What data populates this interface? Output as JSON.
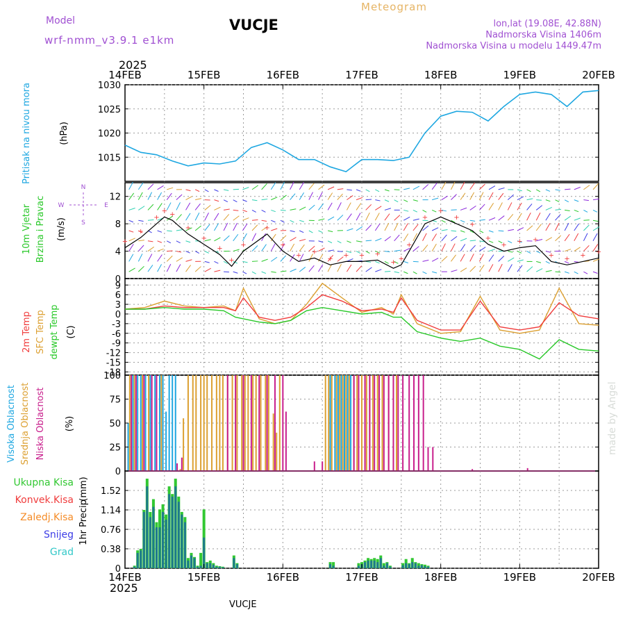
{
  "header": {
    "model_label": "Model",
    "model_name": "wrf-nmm_v3.9.1  e1km",
    "title": "VUCJE",
    "meteogram_label": "Meteogram",
    "lonlat": "lon,lat (19.08E, 42.88N)",
    "altitude": "Nadmorska Visina 1406m",
    "model_altitude": "Nadmorska Visina u modelu 1449.47m",
    "year_top": "2025",
    "year_bottom": "2025",
    "footer_station": "VUCJE",
    "watermark": "made by Angel"
  },
  "colors": {
    "pressure": "#1ea7e1",
    "temp2m": "#f03c3c",
    "sfc_temp": "#dca032",
    "dewpoint": "#28c828",
    "cloud_high": "#1ea7e1",
    "cloud_mid": "#dca032",
    "cloud_low": "#c81e8c",
    "precip_total": "#32c832",
    "precip_conv": "#f03c3c",
    "precip_frz": "#f58c28",
    "precip_snow": "#3c3ce6",
    "precip_graupel": "#32c8c8",
    "header_purple": "#a050d2",
    "meteogram_orange": "#e6b464"
  },
  "chart_data": [
    {
      "type": "line",
      "panel": "pressure",
      "ylabel": "Pritisak na nivou mora",
      "unit": "(hPa)",
      "x_ticks": [
        "14FEB",
        "15FEB",
        "16FEB",
        "17FEB",
        "18FEB",
        "19FEB",
        "20FEB"
      ],
      "ylim": [
        1010,
        1030
      ],
      "yticks": [
        1015,
        1020,
        1025,
        1030
      ],
      "grid": true,
      "x": [
        0,
        0.2,
        0.4,
        0.6,
        0.8,
        1.0,
        1.2,
        1.4,
        1.6,
        1.8,
        2.0,
        2.2,
        2.4,
        2.6,
        2.8,
        3.0,
        3.2,
        3.4,
        3.6,
        3.8,
        4.0,
        4.2,
        4.4,
        4.6,
        4.8,
        5.0,
        5.2,
        5.4,
        5.6,
        5.8,
        6.0
      ],
      "series": [
        {
          "values": [
            1017.5,
            1016,
            1015.5,
            1014.2,
            1013.2,
            1013.8,
            1013.6,
            1014.2,
            1017,
            1018,
            1016.5,
            1014.5,
            1014.5,
            1013,
            1012,
            1014.5,
            1014.5,
            1014.3,
            1015,
            1020,
            1023.5,
            1024.5,
            1024.3,
            1022.5,
            1025.5,
            1028,
            1028.5,
            1028,
            1025.5,
            1028.5,
            1028.8
          ]
        }
      ]
    },
    {
      "type": "line",
      "panel": "wind",
      "ylabel": [
        "10m Vjetar",
        "Brzina i Pravac"
      ],
      "unit": "(m/s)",
      "compass": [
        "N",
        "S",
        "W",
        "E"
      ],
      "ylim": [
        0,
        14
      ],
      "yticks": [
        0,
        4,
        8,
        12
      ],
      "grid": true,
      "x": [
        0,
        0.2,
        0.4,
        0.5,
        0.6,
        0.8,
        1.0,
        1.2,
        1.35,
        1.5,
        1.8,
        2.0,
        2.2,
        2.4,
        2.6,
        2.8,
        3.0,
        3.2,
        3.4,
        3.5,
        3.6,
        3.8,
        4.0,
        4.2,
        4.4,
        4.6,
        4.8,
        5.0,
        5.2,
        5.4,
        5.6,
        5.8,
        6.0
      ],
      "series": [
        {
          "name": "wind speed",
          "values": [
            4.5,
            6,
            8,
            9,
            8.5,
            6.5,
            5,
            3.5,
            1.8,
            4,
            6.5,
            4,
            2.5,
            3,
            2,
            2.5,
            2.5,
            2.7,
            1.5,
            2,
            4,
            8,
            9,
            8,
            7,
            5,
            4,
            4.5,
            4.8,
            2.5,
            2,
            2.5,
            3
          ]
        }
      ]
    },
    {
      "type": "line",
      "panel": "temperature",
      "ylabel": [
        "2m Temp",
        "SFC Temp",
        "dewpt Temp"
      ],
      "unit": "(C)",
      "ylim": [
        -19,
        11
      ],
      "yticks": [
        9,
        6,
        3,
        0,
        -3,
        -6,
        -9,
        -12,
        -15,
        -18
      ],
      "grid": true,
      "x": [
        0,
        0.25,
        0.5,
        0.75,
        1.0,
        1.25,
        1.4,
        1.5,
        1.7,
        1.9,
        2.1,
        2.3,
        2.5,
        2.75,
        3.0,
        3.25,
        3.4,
        3.5,
        3.7,
        4.0,
        4.25,
        4.5,
        4.75,
        5.0,
        5.25,
        5.5,
        5.75,
        6.0
      ],
      "series": [
        {
          "name": "2m Temp",
          "values": [
            1.5,
            1.5,
            2.5,
            2,
            2,
            2,
            1,
            5,
            -1,
            -2,
            -1,
            2,
            6,
            4,
            1,
            1.5,
            0.5,
            5,
            -2,
            -5,
            -5,
            4,
            -4,
            -5,
            -4,
            3.5,
            -0.5,
            -1.5
          ]
        },
        {
          "name": "SFC Temp",
          "values": [
            1.5,
            2,
            4,
            2.5,
            2,
            2.5,
            1,
            8,
            -1.5,
            -3,
            -2,
            3,
            9.5,
            5,
            0.5,
            2,
            0,
            6,
            -3,
            -6,
            -5.5,
            5.5,
            -5,
            -6,
            -5,
            8,
            -3,
            -3.5
          ]
        },
        {
          "name": "dewpt Temp",
          "values": [
            1.5,
            1.5,
            2,
            1.5,
            1.5,
            1,
            -1,
            -1.5,
            -2.5,
            -3,
            -2,
            1,
            2,
            1,
            0,
            0.5,
            -1,
            -1,
            -5.5,
            -7.5,
            -8.5,
            -7.5,
            -10,
            -11,
            -14,
            -8,
            -11,
            -11.5
          ]
        }
      ]
    },
    {
      "type": "bar",
      "panel": "clouds",
      "ylabel": [
        "Visoka Oblacnost",
        "Srednja Oblacnost",
        "Niska Oblacnost"
      ],
      "unit": "(%)",
      "ylim": [
        0,
        100
      ],
      "yticks": [
        0,
        25,
        50,
        75,
        100
      ],
      "grid": true,
      "series": [
        {
          "name": "Visoka Oblacnost",
          "x": [
            0.04,
            0.1,
            0.16,
            0.2,
            0.26,
            0.32,
            0.38,
            0.44,
            0.48,
            0.52,
            0.56,
            0.6,
            0.64,
            1.2,
            2.6,
            2.66,
            2.7,
            2.74,
            2.78,
            2.82,
            2.86
          ],
          "values": [
            50,
            100,
            100,
            100,
            100,
            100,
            100,
            100,
            100,
            62,
            100,
            100,
            100,
            4,
            100,
            100,
            100,
            100,
            100,
            100,
            100
          ]
        },
        {
          "name": "Srednja Oblacnost",
          "x": [
            0.06,
            0.12,
            0.22,
            0.3,
            0.46,
            0.7,
            0.74,
            0.8,
            0.86,
            0.9,
            0.96,
            1.0,
            1.04,
            1.1,
            1.16,
            1.2,
            1.24,
            1.3,
            1.36,
            1.42,
            1.48,
            1.52,
            1.56,
            1.62,
            1.66,
            1.72,
            1.78,
            1.82,
            1.88,
            1.92,
            1.96,
            2.54,
            2.58,
            2.62,
            2.68,
            2.72,
            2.76,
            2.8,
            2.84,
            2.9,
            2.94,
            3.0,
            3.06,
            3.1,
            3.14,
            3.2,
            3.26,
            3.34,
            3.4,
            3.44
          ],
          "values": [
            100,
            100,
            100,
            100,
            100,
            2,
            55,
            100,
            100,
            100,
            100,
            100,
            100,
            100,
            100,
            100,
            100,
            100,
            100,
            100,
            100,
            100,
            100,
            100,
            100,
            100,
            100,
            100,
            60,
            40,
            100,
            100,
            100,
            100,
            100,
            100,
            100,
            100,
            100,
            100,
            100,
            100,
            100,
            100,
            100,
            100,
            100,
            100,
            100,
            100
          ]
        },
        {
          "name": "Niska Oblacnost",
          "x": [
            0.08,
            0.14,
            0.24,
            0.34,
            0.4,
            0.66,
            0.72,
            1.3,
            1.4,
            1.5,
            1.6,
            1.7,
            1.8,
            1.9,
            2.0,
            2.04,
            2.4,
            2.5,
            2.9,
            2.96,
            3.04,
            3.1,
            3.16,
            3.22,
            3.28,
            3.34,
            3.4,
            3.46,
            3.52,
            3.6,
            3.66,
            3.72,
            3.78,
            3.84,
            3.9,
            4.4,
            5.1
          ],
          "values": [
            100,
            100,
            100,
            100,
            100,
            8,
            14,
            100,
            100,
            100,
            100,
            100,
            100,
            100,
            100,
            62,
            10,
            10,
            100,
            100,
            100,
            100,
            100,
            100,
            100,
            100,
            100,
            100,
            100,
            100,
            100,
            100,
            100,
            25,
            25,
            2,
            3
          ]
        }
      ]
    },
    {
      "type": "bar",
      "panel": "precipitation",
      "ylabel": "1hr Precip",
      "unit": "(mm)",
      "legend": [
        "Ukupna Kisa",
        "Konvek.Kisa",
        "Zaledj.Kisa",
        "Snijeg",
        "Grad"
      ],
      "ylim": [
        0,
        1.9
      ],
      "yticks": [
        0,
        0.38,
        0.76,
        1.14,
        1.52
      ],
      "x_ticks": [
        "14FEB",
        "15FEB",
        "16FEB",
        "17FEB",
        "18FEB",
        "19FEB",
        "20FEB"
      ],
      "grid": true,
      "x": [
        0.12,
        0.16,
        0.2,
        0.24,
        0.28,
        0.32,
        0.36,
        0.4,
        0.44,
        0.48,
        0.52,
        0.56,
        0.6,
        0.64,
        0.68,
        0.72,
        0.76,
        0.8,
        0.84,
        0.88,
        0.92,
        0.96,
        1.0,
        1.04,
        1.08,
        1.12,
        1.16,
        1.2,
        1.24,
        1.38,
        1.42,
        2.6,
        2.64,
        2.96,
        3.0,
        3.04,
        3.08,
        3.12,
        3.16,
        3.2,
        3.24,
        3.28,
        3.32,
        3.36,
        3.52,
        3.56,
        3.6,
        3.64,
        3.68,
        3.72,
        3.76,
        3.8,
        3.84
      ],
      "series": [
        {
          "name": "Ukupna Kisa",
          "values": [
            0.05,
            0.35,
            0.38,
            1.14,
            1.75,
            1.1,
            1.35,
            0.9,
            1.15,
            1.25,
            1.05,
            1.6,
            1.45,
            1.75,
            1.4,
            1.1,
            1.0,
            0.2,
            0.3,
            0.22,
            0.05,
            0.3,
            1.15,
            0.12,
            0.15,
            0.1,
            0.05,
            0.04,
            0.03,
            0.25,
            0.1,
            0.12,
            0.12,
            0.1,
            0.12,
            0.15,
            0.2,
            0.18,
            0.2,
            0.18,
            0.25,
            0.1,
            0.12,
            0.05,
            0.1,
            0.18,
            0.1,
            0.2,
            0.12,
            0.1,
            0.08,
            0.07,
            0.05
          ]
        },
        {
          "name": "Snijeg",
          "values": [
            0.03,
            0.3,
            0.35,
            1.1,
            1.6,
            1.0,
            1.2,
            0.8,
            0.8,
            1.1,
            0.95,
            1.45,
            1.4,
            1.6,
            1.3,
            1.05,
            0.9,
            0.15,
            0.25,
            0.2,
            0.03,
            0.05,
            0.6,
            0.1,
            0.1,
            0.07,
            0.03,
            0.03,
            0.02,
            0.2,
            0.08,
            0.08,
            0.05,
            0.05,
            0.08,
            0.12,
            0.15,
            0.15,
            0.15,
            0.12,
            0.2,
            0.05,
            0.1,
            0.03,
            0.06,
            0.1,
            0.08,
            0.12,
            0.1,
            0.05,
            0.06,
            0.04,
            0.03
          ]
        }
      ]
    }
  ]
}
